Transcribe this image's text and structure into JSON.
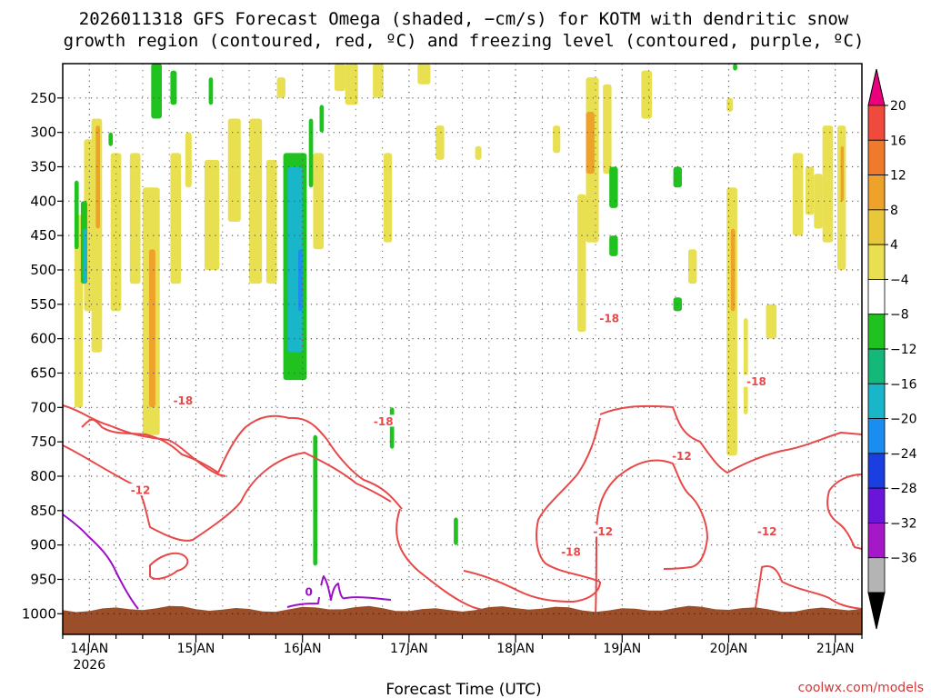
{
  "title": {
    "line1": "2026011318 GFS Forecast Omega (shaded, −cm/s) for KOTM with dendritic snow",
    "line2": "growth region (contoured, red, ºC) and freezing level (contoured, purple, ºC)"
  },
  "credit": "coolwx.com/models",
  "colors": {
    "dendritic_contour": "#e84848",
    "freezing_contour": "#9a10c8",
    "terrain": "#9a4e2a"
  },
  "chart_data": {
    "type": "heatmap",
    "title": "2026011318 GFS Forecast Omega (shaded, −cm/s) for KOTM with dendritic snow growth region (contoured, red, ºC) and freezing level (contoured, purple, ºC)",
    "xlabel": "Forecast Time (UTC)",
    "ylabel": "",
    "x_ticks": [
      {
        "label": "14JAN",
        "sublabel": "2026",
        "day": 14
      },
      {
        "label": "15JAN",
        "sublabel": "",
        "day": 15
      },
      {
        "label": "16JAN",
        "sublabel": "",
        "day": 16
      },
      {
        "label": "17JAN",
        "sublabel": "",
        "day": 17
      },
      {
        "label": "18JAN",
        "sublabel": "",
        "day": 18
      },
      {
        "label": "19JAN",
        "sublabel": "",
        "day": 19
      },
      {
        "label": "20JAN",
        "sublabel": "",
        "day": 20
      },
      {
        "label": "21JAN",
        "sublabel": "",
        "day": 21
      }
    ],
    "x_range_days": [
      13.75,
      21.25
    ],
    "y_ticks": [
      {
        "label": "250",
        "value": 250
      },
      {
        "label": "300",
        "value": 300
      },
      {
        "label": "350",
        "value": 350
      },
      {
        "label": "400",
        "value": 400
      },
      {
        "label": "450",
        "value": 450
      },
      {
        "label": "500",
        "value": 500
      },
      {
        "label": "550",
        "value": 550
      },
      {
        "label": "600",
        "value": 600
      },
      {
        "label": "650",
        "value": 650
      },
      {
        "label": "700",
        "value": 700
      },
      {
        "label": "750",
        "value": 750
      },
      {
        "label": "800",
        "value": 800
      },
      {
        "label": "850",
        "value": 850
      },
      {
        "label": "900",
        "value": 900
      },
      {
        "label": "950",
        "value": 950
      },
      {
        "label": "1000",
        "value": 1000
      }
    ],
    "y_range_hpa": [
      200,
      1030
    ],
    "grid": true,
    "colorbar": {
      "placement": "right",
      "labels": [
        "20",
        "16",
        "12",
        "8",
        "4",
        "−4",
        "−8",
        "−12",
        "−16",
        "−20",
        "−24",
        "−28",
        "−32",
        "−36"
      ],
      "colors": [
        "#e8007c",
        "#ef4a3c",
        "#f07a2c",
        "#efa22a",
        "#e8c83a",
        "#e8e050",
        "#ffffff",
        "#1fc21f",
        "#14b878",
        "#18b6c8",
        "#1a8ef0",
        "#1a3ee0",
        "#6a16d8",
        "#a418c8",
        "#b4b4b4",
        "#000000"
      ]
    },
    "omega_regions": [
      {
        "value": 6,
        "x": [
          13.86,
          13.94
        ],
        "p": [
          420,
          700
        ]
      },
      {
        "value": 6,
        "x": [
          13.95,
          14.03
        ],
        "p": [
          310,
          560
        ]
      },
      {
        "value": 6,
        "x": [
          14.02,
          14.12
        ],
        "p": [
          280,
          620
        ]
      },
      {
        "value": 10,
        "x": [
          14.06,
          14.1
        ],
        "p": [
          290,
          440
        ]
      },
      {
        "value": 6,
        "x": [
          14.2,
          14.3
        ],
        "p": [
          330,
          560
        ]
      },
      {
        "value": 6,
        "x": [
          14.38,
          14.48
        ],
        "p": [
          330,
          520
        ]
      },
      {
        "value": 6,
        "x": [
          14.5,
          14.66
        ],
        "p": [
          380,
          740
        ]
      },
      {
        "value": 10,
        "x": [
          14.56,
          14.62
        ],
        "p": [
          470,
          700
        ]
      },
      {
        "value": 6,
        "x": [
          14.76,
          14.86
        ],
        "p": [
          330,
          520
        ]
      },
      {
        "value": 6,
        "x": [
          14.9,
          14.96
        ],
        "p": [
          300,
          380
        ]
      },
      {
        "value": 6,
        "x": [
          15.08,
          15.22
        ],
        "p": [
          340,
          500
        ]
      },
      {
        "value": 6,
        "x": [
          15.3,
          15.42
        ],
        "p": [
          280,
          430
        ]
      },
      {
        "value": 6,
        "x": [
          15.5,
          15.62
        ],
        "p": [
          280,
          520
        ]
      },
      {
        "value": 6,
        "x": [
          15.66,
          15.76
        ],
        "p": [
          340,
          520
        ]
      },
      {
        "value": 6,
        "x": [
          15.76,
          15.84
        ],
        "p": [
          220,
          250
        ]
      },
      {
        "value": 6,
        "x": [
          15.9,
          15.96
        ],
        "p": [
          370,
          480
        ]
      },
      {
        "value": 6,
        "x": [
          16.1,
          16.2
        ],
        "p": [
          330,
          470
        ]
      },
      {
        "value": 6,
        "x": [
          16.3,
          16.4
        ],
        "p": [
          200,
          240
        ]
      },
      {
        "value": 6,
        "x": [
          16.4,
          16.52
        ],
        "p": [
          200,
          260
        ]
      },
      {
        "value": 6,
        "x": [
          16.66,
          16.76
        ],
        "p": [
          200,
          250
        ]
      },
      {
        "value": 6,
        "x": [
          16.76,
          16.84
        ],
        "p": [
          330,
          460
        ]
      },
      {
        "value": 6,
        "x": [
          17.08,
          17.2
        ],
        "p": [
          200,
          230
        ]
      },
      {
        "value": 6,
        "x": [
          17.25,
          17.33
        ],
        "p": [
          290,
          340
        ]
      },
      {
        "value": 6,
        "x": [
          17.62,
          17.68
        ],
        "p": [
          320,
          340
        ]
      },
      {
        "value": 6,
        "x": [
          18.35,
          18.42
        ],
        "p": [
          290,
          330
        ]
      },
      {
        "value": 6,
        "x": [
          18.58,
          18.66
        ],
        "p": [
          390,
          590
        ]
      },
      {
        "value": 6,
        "x": [
          18.66,
          18.78
        ],
        "p": [
          220,
          460
        ]
      },
      {
        "value": 10,
        "x": [
          18.66,
          18.74
        ],
        "p": [
          270,
          360
        ]
      },
      {
        "value": 6,
        "x": [
          18.82,
          18.9
        ],
        "p": [
          230,
          360
        ]
      },
      {
        "value": 6,
        "x": [
          19.18,
          19.28
        ],
        "p": [
          210,
          280
        ]
      },
      {
        "value": 6,
        "x": [
          19.62,
          19.7
        ],
        "p": [
          470,
          520
        ]
      },
      {
        "value": 6,
        "x": [
          19.98,
          20.08
        ],
        "p": [
          380,
          770
        ]
      },
      {
        "value": 10,
        "x": [
          20.02,
          20.06
        ],
        "p": [
          440,
          560
        ]
      },
      {
        "value": 6,
        "x": [
          19.98,
          20.04
        ],
        "p": [
          250,
          270
        ]
      },
      {
        "value": 6,
        "x": [
          20.14,
          20.18
        ],
        "p": [
          570,
          710
        ]
      },
      {
        "value": 6,
        "x": [
          20.35,
          20.45
        ],
        "p": [
          550,
          600
        ]
      },
      {
        "value": 6,
        "x": [
          20.6,
          20.7
        ],
        "p": [
          330,
          450
        ]
      },
      {
        "value": 6,
        "x": [
          20.72,
          20.8
        ],
        "p": [
          350,
          420
        ]
      },
      {
        "value": 6,
        "x": [
          20.8,
          20.88
        ],
        "p": [
          360,
          440
        ]
      },
      {
        "value": 6,
        "x": [
          20.88,
          20.98
        ],
        "p": [
          290,
          460
        ]
      },
      {
        "value": 6,
        "x": [
          21.02,
          21.1
        ],
        "p": [
          290,
          500
        ]
      },
      {
        "value": 10,
        "x": [
          21.05,
          21.08
        ],
        "p": [
          320,
          400
        ]
      },
      {
        "value": -6,
        "x": [
          13.86,
          13.9
        ],
        "p": [
          370,
          470
        ]
      },
      {
        "value": -6,
        "x": [
          13.92,
          13.98
        ],
        "p": [
          400,
          520
        ]
      },
      {
        "value": -14,
        "x": [
          13.94,
          13.98
        ],
        "p": [
          440,
          520
        ]
      },
      {
        "value": -6,
        "x": [
          14.18,
          14.22
        ],
        "p": [
          300,
          320
        ]
      },
      {
        "value": -6,
        "x": [
          14.58,
          14.68
        ],
        "p": [
          200,
          280
        ]
      },
      {
        "value": -6,
        "x": [
          14.76,
          14.82
        ],
        "p": [
          210,
          260
        ]
      },
      {
        "value": -6,
        "x": [
          15.12,
          15.16
        ],
        "p": [
          220,
          260
        ]
      },
      {
        "value": -6,
        "x": [
          15.82,
          16.04
        ],
        "p": [
          330,
          660
        ]
      },
      {
        "value": -14,
        "x": [
          15.86,
          16.0
        ],
        "p": [
          350,
          620
        ]
      },
      {
        "value": -18,
        "x": [
          15.96,
          16.0
        ],
        "p": [
          470,
          560
        ]
      },
      {
        "value": -6,
        "x": [
          16.06,
          16.1
        ],
        "p": [
          280,
          380
        ]
      },
      {
        "value": -6,
        "x": [
          16.16,
          16.2
        ],
        "p": [
          260,
          300
        ]
      },
      {
        "value": -6,
        "x": [
          16.1,
          16.14
        ],
        "p": [
          740,
          930
        ]
      },
      {
        "value": -6,
        "x": [
          16.82,
          16.86
        ],
        "p": [
          700,
          760
        ]
      },
      {
        "value": -6,
        "x": [
          17.42,
          17.46
        ],
        "p": [
          860,
          900
        ]
      },
      {
        "value": -6,
        "x": [
          18.88,
          18.96
        ],
        "p": [
          350,
          410
        ]
      },
      {
        "value": -6,
        "x": [
          18.88,
          18.96
        ],
        "p": [
          450,
          480
        ]
      },
      {
        "value": -6,
        "x": [
          19.48,
          19.56
        ],
        "p": [
          350,
          380
        ]
      },
      {
        "value": -6,
        "x": [
          19.48,
          19.56
        ],
        "p": [
          540,
          560
        ]
      },
      {
        "value": -6,
        "x": [
          20.04,
          20.08
        ],
        "p": [
          200,
          210
        ]
      }
    ],
    "dendritic_contours": [
      {
        "label": "-18",
        "label_pos": [
          14.88,
          690
        ]
      },
      {
        "label": "-12",
        "label_pos": [
          14.48,
          820
        ]
      },
      {
        "label": "-18",
        "label_pos": [
          16.76,
          720
        ]
      },
      {
        "label": "-18",
        "label_pos": [
          18.88,
          570
        ]
      },
      {
        "label": "-12",
        "label_pos": [
          19.56,
          770
        ]
      },
      {
        "label": "-18",
        "label_pos": [
          20.26,
          662
        ]
      },
      {
        "label": "-12",
        "label_pos": [
          18.82,
          880
        ]
      },
      {
        "label": "-18",
        "label_pos": [
          18.52,
          910
        ]
      },
      {
        "label": "-12",
        "label_pos": [
          20.36,
          880
        ]
      }
    ],
    "freezing_contours": [
      {
        "label": "0",
        "label_pos": [
          16.06,
          968
        ]
      }
    ]
  }
}
